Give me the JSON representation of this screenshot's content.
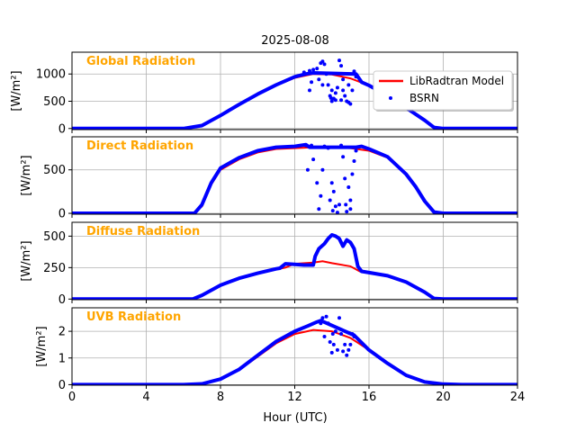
{
  "chart_data": {
    "type": "line",
    "title": "2025-08-08",
    "xlabel": "Hour (UTC)",
    "xlim": [
      0,
      24
    ],
    "xticks": [
      0,
      4,
      8,
      12,
      16,
      20,
      24
    ],
    "grid": true,
    "legend": {
      "placement": "top-right of first panel",
      "entries": [
        "LibRadtran Model",
        "BSRN"
      ]
    },
    "colors": {
      "model": "#ff0000",
      "measured": "#0000ff",
      "label": "#ffa500"
    },
    "panels": [
      {
        "name": "Global Radiation",
        "ylabel": "[W/m²]",
        "ylim": [
          -20,
          1400
        ],
        "yticks": [
          0,
          500,
          1000
        ],
        "model": [
          [
            0,
            0
          ],
          [
            6,
            0
          ],
          [
            7,
            50
          ],
          [
            8,
            230
          ],
          [
            9,
            430
          ],
          [
            10,
            620
          ],
          [
            11,
            790
          ],
          [
            12,
            930
          ],
          [
            13,
            1000
          ],
          [
            14,
            990
          ],
          [
            15,
            920
          ],
          [
            16,
            790
          ],
          [
            17,
            600
          ],
          [
            18,
            380
          ],
          [
            19,
            150
          ],
          [
            19.5,
            20
          ],
          [
            20,
            0
          ],
          [
            24,
            0
          ]
        ],
        "measured": [
          [
            0,
            0
          ],
          [
            6,
            0
          ],
          [
            7,
            55
          ],
          [
            8,
            240
          ],
          [
            9,
            440
          ],
          [
            10,
            630
          ],
          [
            11,
            800
          ],
          [
            12,
            950
          ],
          [
            12.6,
            1000
          ],
          [
            13,
            1020
          ],
          [
            15.3,
            1000
          ],
          [
            15.6,
            850
          ],
          [
            16,
            790
          ],
          [
            17,
            600
          ],
          [
            18,
            380
          ],
          [
            19,
            150
          ],
          [
            19.5,
            20
          ],
          [
            20,
            0
          ],
          [
            24,
            0
          ]
        ],
        "measured_points": [
          [
            12.5,
            1030
          ],
          [
            12.8,
            1060
          ],
          [
            12.9,
            850
          ],
          [
            13.0,
            1080
          ],
          [
            13.2,
            1100
          ],
          [
            13.3,
            900
          ],
          [
            13.4,
            1200
          ],
          [
            13.5,
            1230
          ],
          [
            13.6,
            1180
          ],
          [
            13.7,
            1000
          ],
          [
            13.8,
            800
          ],
          [
            13.9,
            600
          ],
          [
            14.0,
            700
          ],
          [
            14.1,
            550
          ],
          [
            14.2,
            650
          ],
          [
            14.3,
            750
          ],
          [
            14.4,
            1250
          ],
          [
            14.5,
            1150
          ],
          [
            14.6,
            900
          ],
          [
            14.7,
            600
          ],
          [
            14.8,
            500
          ],
          [
            14.9,
            800
          ],
          [
            15.0,
            450
          ],
          [
            15.1,
            700
          ],
          [
            15.2,
            1050
          ],
          [
            15.3,
            950
          ],
          [
            14.0,
            500
          ],
          [
            14.2,
            520
          ],
          [
            13.95,
            560
          ],
          [
            14.5,
            520
          ],
          [
            14.6,
            700
          ],
          [
            13.5,
            800
          ],
          [
            12.8,
            700
          ],
          [
            14.9,
            480
          ]
        ]
      },
      {
        "name": "Direct Radiation",
        "ylabel": "[W/m²]",
        "ylim": [
          -10,
          880
        ],
        "yticks": [
          0,
          500
        ],
        "model": [
          [
            0,
            0
          ],
          [
            6.5,
            0
          ],
          [
            7,
            80
          ],
          [
            7.5,
            330
          ],
          [
            8,
            500
          ],
          [
            9,
            620
          ],
          [
            10,
            700
          ],
          [
            11,
            740
          ],
          [
            12,
            750
          ],
          [
            13,
            760
          ],
          [
            14,
            760
          ],
          [
            15,
            750
          ],
          [
            16,
            720
          ],
          [
            17,
            640
          ],
          [
            18,
            450
          ],
          [
            18.5,
            320
          ],
          [
            19,
            150
          ],
          [
            19.5,
            20
          ],
          [
            20,
            0
          ],
          [
            24,
            0
          ]
        ],
        "measured": [
          [
            0,
            0
          ],
          [
            6.6,
            0
          ],
          [
            7,
            100
          ],
          [
            7.5,
            350
          ],
          [
            8,
            520
          ],
          [
            9,
            640
          ],
          [
            10,
            720
          ],
          [
            11,
            760
          ],
          [
            12,
            770
          ],
          [
            12.6,
            790
          ],
          [
            12.8,
            760
          ],
          [
            15.3,
            760
          ],
          [
            15.6,
            770
          ],
          [
            16,
            740
          ],
          [
            17,
            650
          ],
          [
            18,
            450
          ],
          [
            18.5,
            310
          ],
          [
            19,
            140
          ],
          [
            19.5,
            15
          ],
          [
            20,
            0
          ],
          [
            24,
            0
          ]
        ],
        "measured_points": [
          [
            12.6,
            780
          ],
          [
            12.9,
            780
          ],
          [
            13.0,
            620
          ],
          [
            13.2,
            350
          ],
          [
            13.3,
            50
          ],
          [
            13.4,
            200
          ],
          [
            13.5,
            500
          ],
          [
            13.6,
            770
          ],
          [
            13.8,
            750
          ],
          [
            13.9,
            150
          ],
          [
            14.0,
            350
          ],
          [
            14.05,
            30
          ],
          [
            14.1,
            250
          ],
          [
            14.2,
            80
          ],
          [
            14.3,
            10
          ],
          [
            14.5,
            780
          ],
          [
            14.6,
            650
          ],
          [
            14.7,
            400
          ],
          [
            14.75,
            100
          ],
          [
            14.8,
            20
          ],
          [
            14.9,
            300
          ],
          [
            15.0,
            150
          ],
          [
            15.1,
            450
          ],
          [
            15.2,
            600
          ],
          [
            15.3,
            720
          ],
          [
            12.7,
            500
          ],
          [
            14.4,
            100
          ],
          [
            15.0,
            50
          ]
        ]
      },
      {
        "name": "Diffuse Radiation",
        "ylabel": "[W/m²]",
        "ylim": [
          -5,
          610
        ],
        "yticks": [
          0,
          250,
          500
        ],
        "model": [
          [
            0,
            0
          ],
          [
            6.5,
            0
          ],
          [
            7,
            30
          ],
          [
            8,
            110
          ],
          [
            9,
            160
          ],
          [
            10,
            200
          ],
          [
            11,
            235
          ],
          [
            11.5,
            250
          ],
          [
            12,
            280
          ],
          [
            13,
            290
          ],
          [
            13.5,
            300
          ],
          [
            14,
            285
          ],
          [
            15,
            260
          ],
          [
            15.5,
            220
          ],
          [
            16,
            210
          ],
          [
            17,
            180
          ],
          [
            18,
            130
          ],
          [
            19,
            50
          ],
          [
            19.5,
            5
          ],
          [
            20,
            0
          ],
          [
            24,
            0
          ]
        ],
        "measured": [
          [
            0,
            0
          ],
          [
            6.5,
            0
          ],
          [
            7,
            30
          ],
          [
            8,
            110
          ],
          [
            9,
            165
          ],
          [
            10,
            205
          ],
          [
            11,
            240
          ],
          [
            11.2,
            245
          ],
          [
            11.5,
            280
          ],
          [
            12,
            275
          ],
          [
            12.5,
            270
          ],
          [
            13,
            270
          ],
          [
            13.1,
            340
          ],
          [
            13.3,
            400
          ],
          [
            13.6,
            440
          ],
          [
            13.8,
            480
          ],
          [
            14.0,
            510
          ],
          [
            14.2,
            500
          ],
          [
            14.4,
            480
          ],
          [
            14.6,
            420
          ],
          [
            14.8,
            470
          ],
          [
            15.0,
            450
          ],
          [
            15.2,
            400
          ],
          [
            15.4,
            260
          ],
          [
            15.6,
            220
          ],
          [
            16,
            210
          ],
          [
            17,
            185
          ],
          [
            18,
            135
          ],
          [
            19,
            55
          ],
          [
            19.5,
            5
          ],
          [
            20,
            0
          ],
          [
            24,
            0
          ]
        ],
        "measured_points": []
      },
      {
        "name": "UVB Radiation",
        "ylabel": "[W/m²]",
        "ylim": [
          -0.02,
          2.88
        ],
        "yticks": [
          0,
          1,
          2
        ],
        "model": [
          [
            0,
            0
          ],
          [
            6,
            0
          ],
          [
            7,
            0.03
          ],
          [
            8,
            0.2
          ],
          [
            9,
            0.55
          ],
          [
            10,
            1.05
          ],
          [
            11,
            1.55
          ],
          [
            12,
            1.9
          ],
          [
            13,
            2.05
          ],
          [
            14,
            2.0
          ],
          [
            15,
            1.75
          ],
          [
            16,
            1.3
          ],
          [
            17,
            0.8
          ],
          [
            18,
            0.35
          ],
          [
            19,
            0.1
          ],
          [
            20,
            0.02
          ],
          [
            21,
            0
          ],
          [
            24,
            0
          ]
        ],
        "measured": [
          [
            0,
            0
          ],
          [
            6,
            0
          ],
          [
            7,
            0.03
          ],
          [
            8,
            0.21
          ],
          [
            9,
            0.57
          ],
          [
            10,
            1.1
          ],
          [
            11,
            1.62
          ],
          [
            12,
            2.0
          ],
          [
            12.7,
            2.2
          ],
          [
            13.2,
            2.35
          ],
          [
            13.4,
            2.4
          ],
          [
            15.2,
            1.85
          ],
          [
            16,
            1.3
          ],
          [
            17,
            0.8
          ],
          [
            18,
            0.35
          ],
          [
            19,
            0.1
          ],
          [
            20,
            0.02
          ],
          [
            21,
            0
          ],
          [
            24,
            0
          ]
        ],
        "measured_points": [
          [
            13.5,
            2.5
          ],
          [
            13.7,
            2.55
          ],
          [
            13.8,
            2.3
          ],
          [
            13.9,
            1.6
          ],
          [
            14.0,
            1.2
          ],
          [
            14.1,
            1.5
          ],
          [
            14.2,
            2.0
          ],
          [
            14.3,
            1.3
          ],
          [
            14.4,
            2.5
          ],
          [
            14.5,
            1.9
          ],
          [
            14.6,
            1.25
          ],
          [
            14.7,
            1.5
          ],
          [
            14.8,
            1.1
          ],
          [
            14.9,
            1.3
          ],
          [
            15.0,
            1.5
          ],
          [
            15.1,
            1.9
          ],
          [
            15.2,
            1.8
          ],
          [
            13.4,
            2.3
          ],
          [
            13.6,
            1.8
          ],
          [
            14.05,
            1.9
          ]
        ]
      }
    ]
  }
}
